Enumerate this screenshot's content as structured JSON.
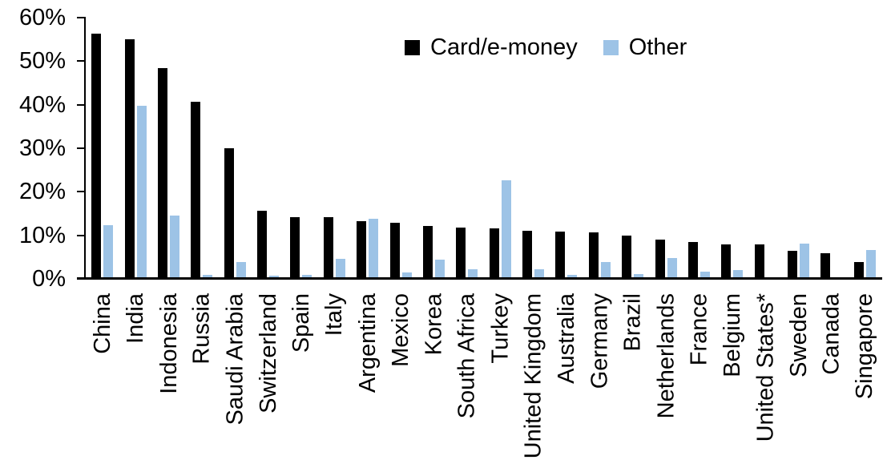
{
  "chart_data": {
    "type": "bar",
    "title": "",
    "categories": [
      "China",
      "India",
      "Indonesia",
      "Russia",
      "Saudi Arabia",
      "Switzerland",
      "Spain",
      "Italy",
      "Argentina",
      "Mexico",
      "Korea",
      "South Africa",
      "Turkey",
      "United Kingdom",
      "Australia",
      "Germany",
      "Brazil",
      "Netherlands",
      "France",
      "Belgium",
      "United States*",
      "Sweden",
      "Canada",
      "Singapore"
    ],
    "series": [
      {
        "name": "Card/e-money",
        "color": "#000000",
        "values": [
          56.4,
          55.1,
          48.4,
          40.6,
          30.0,
          15.6,
          14.2,
          14.1,
          13.3,
          12.9,
          12.2,
          11.8,
          11.6,
          11.0,
          10.8,
          10.6,
          9.9,
          9.1,
          8.5,
          8.0,
          7.9,
          6.4,
          5.9,
          3.8
        ]
      },
      {
        "name": "Other",
        "color": "#9DC3E6",
        "values": [
          12.3,
          39.8,
          14.6,
          1.0,
          3.8,
          0.8,
          1.0,
          4.6,
          13.9,
          1.4,
          4.5,
          2.3,
          22.6,
          2.3,
          1.0,
          3.9,
          1.1,
          4.8,
          1.6,
          2.0,
          0.3,
          8.1,
          0.0,
          6.6
        ]
      }
    ],
    "xlabel": "",
    "ylabel": "",
    "ylim": [
      0,
      60
    ],
    "ytick_step": 10,
    "ytick_labels": [
      "0%",
      "10%",
      "20%",
      "30%",
      "40%",
      "50%",
      "60%"
    ],
    "grid": false,
    "legend_position": "top-center",
    "x_label_rotation_deg": 90
  }
}
